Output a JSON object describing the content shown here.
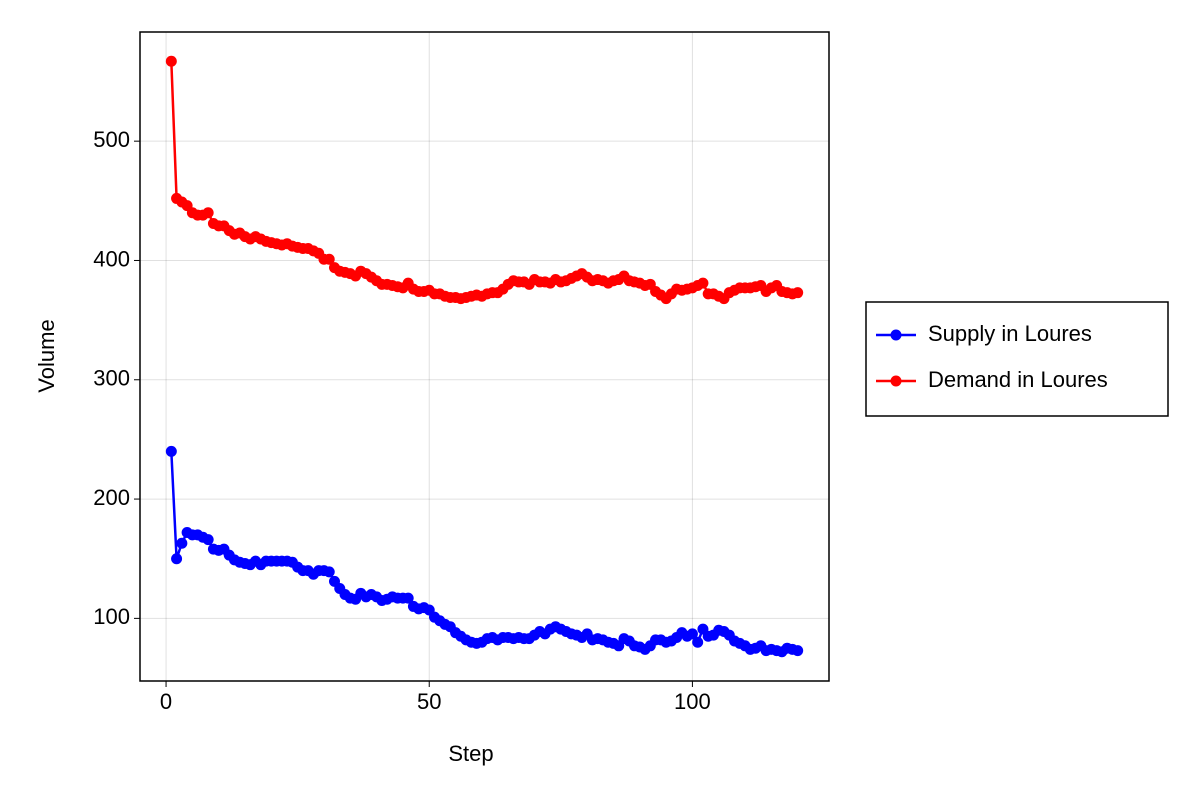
{
  "chart_data": {
    "type": "line",
    "xlabel": "Step",
    "ylabel": "Volume",
    "x": [
      1,
      2,
      3,
      4,
      5,
      6,
      7,
      8,
      9,
      10,
      11,
      12,
      13,
      14,
      15,
      16,
      17,
      18,
      19,
      20,
      21,
      22,
      23,
      24,
      25,
      26,
      27,
      28,
      29,
      30,
      31,
      32,
      33,
      34,
      35,
      36,
      37,
      38,
      39,
      40,
      41,
      42,
      43,
      44,
      45,
      46,
      47,
      48,
      49,
      50,
      51,
      52,
      53,
      54,
      55,
      56,
      57,
      58,
      59,
      60,
      61,
      62,
      63,
      64,
      65,
      66,
      67,
      68,
      69,
      70,
      71,
      72,
      73,
      74,
      75,
      76,
      77,
      78,
      79,
      80,
      81,
      82,
      83,
      84,
      85,
      86,
      87,
      88,
      89,
      90,
      91,
      92,
      93,
      94,
      95,
      96,
      97,
      98,
      99,
      100,
      101,
      102,
      103,
      104,
      105,
      106,
      107,
      108,
      109,
      110,
      111,
      112,
      113,
      114,
      115,
      116,
      117,
      118,
      119,
      120
    ],
    "series": [
      {
        "name": "Supply in Loures",
        "color": "#0000ff",
        "values": [
          240,
          150,
          163,
          172,
          170,
          170,
          168,
          166,
          158,
          157,
          158,
          153,
          149,
          147,
          146,
          145,
          148,
          145,
          148,
          148,
          148,
          148,
          148,
          147,
          143,
          140,
          140,
          137,
          140,
          140,
          139,
          131,
          125,
          120,
          117,
          116,
          121,
          118,
          120,
          118,
          115,
          116,
          118,
          117,
          117,
          117,
          110,
          108,
          109,
          107,
          101,
          98,
          95,
          93,
          88,
          85,
          82,
          80,
          79,
          80,
          83,
          84,
          82,
          84,
          84,
          83,
          84,
          83,
          83,
          86,
          89,
          87,
          91,
          93,
          91,
          89,
          87,
          86,
          84,
          87,
          82,
          83,
          82,
          80,
          79,
          77,
          83,
          81,
          77,
          76,
          74,
          77,
          82,
          82,
          80,
          81,
          84,
          88,
          85,
          87,
          80,
          91,
          85,
          86,
          90,
          89,
          86,
          81,
          79,
          77,
          74,
          75,
          77,
          73,
          74,
          73,
          72,
          75,
          74,
          73
        ]
      },
      {
        "name": "Demand in Loures",
        "color": "#ff0000",
        "values": [
          567,
          452,
          449,
          446,
          440,
          438,
          438,
          440,
          431,
          429,
          429,
          425,
          422,
          423,
          420,
          418,
          420,
          418,
          416,
          415,
          414,
          413,
          414,
          412,
          411,
          410,
          410,
          408,
          406,
          401,
          401,
          394,
          391,
          390,
          389,
          387,
          391,
          389,
          386,
          383,
          380,
          380,
          379,
          378,
          377,
          381,
          376,
          374,
          374,
          375,
          372,
          372,
          370,
          369,
          369,
          368,
          369,
          370,
          371,
          370,
          372,
          373,
          373,
          376,
          380,
          383,
          382,
          382,
          380,
          384,
          382,
          382,
          381,
          384,
          382,
          383,
          385,
          387,
          389,
          386,
          383,
          384,
          383,
          381,
          383,
          384,
          387,
          383,
          382,
          381,
          379,
          380,
          374,
          371,
          368,
          372,
          376,
          375,
          376,
          377,
          379,
          381,
          372,
          372,
          370,
          368,
          373,
          375,
          377,
          377,
          377,
          378,
          379,
          374,
          377,
          379,
          374,
          373,
          372,
          373
        ]
      }
    ],
    "xlim": [
      -4.95,
      125.95
    ],
    "ylim": [
      47.5,
      591.5
    ],
    "xticks": [
      0,
      50,
      100
    ],
    "yticks": [
      100,
      200,
      300,
      400,
      500
    ],
    "grid": true,
    "legend": "right"
  }
}
